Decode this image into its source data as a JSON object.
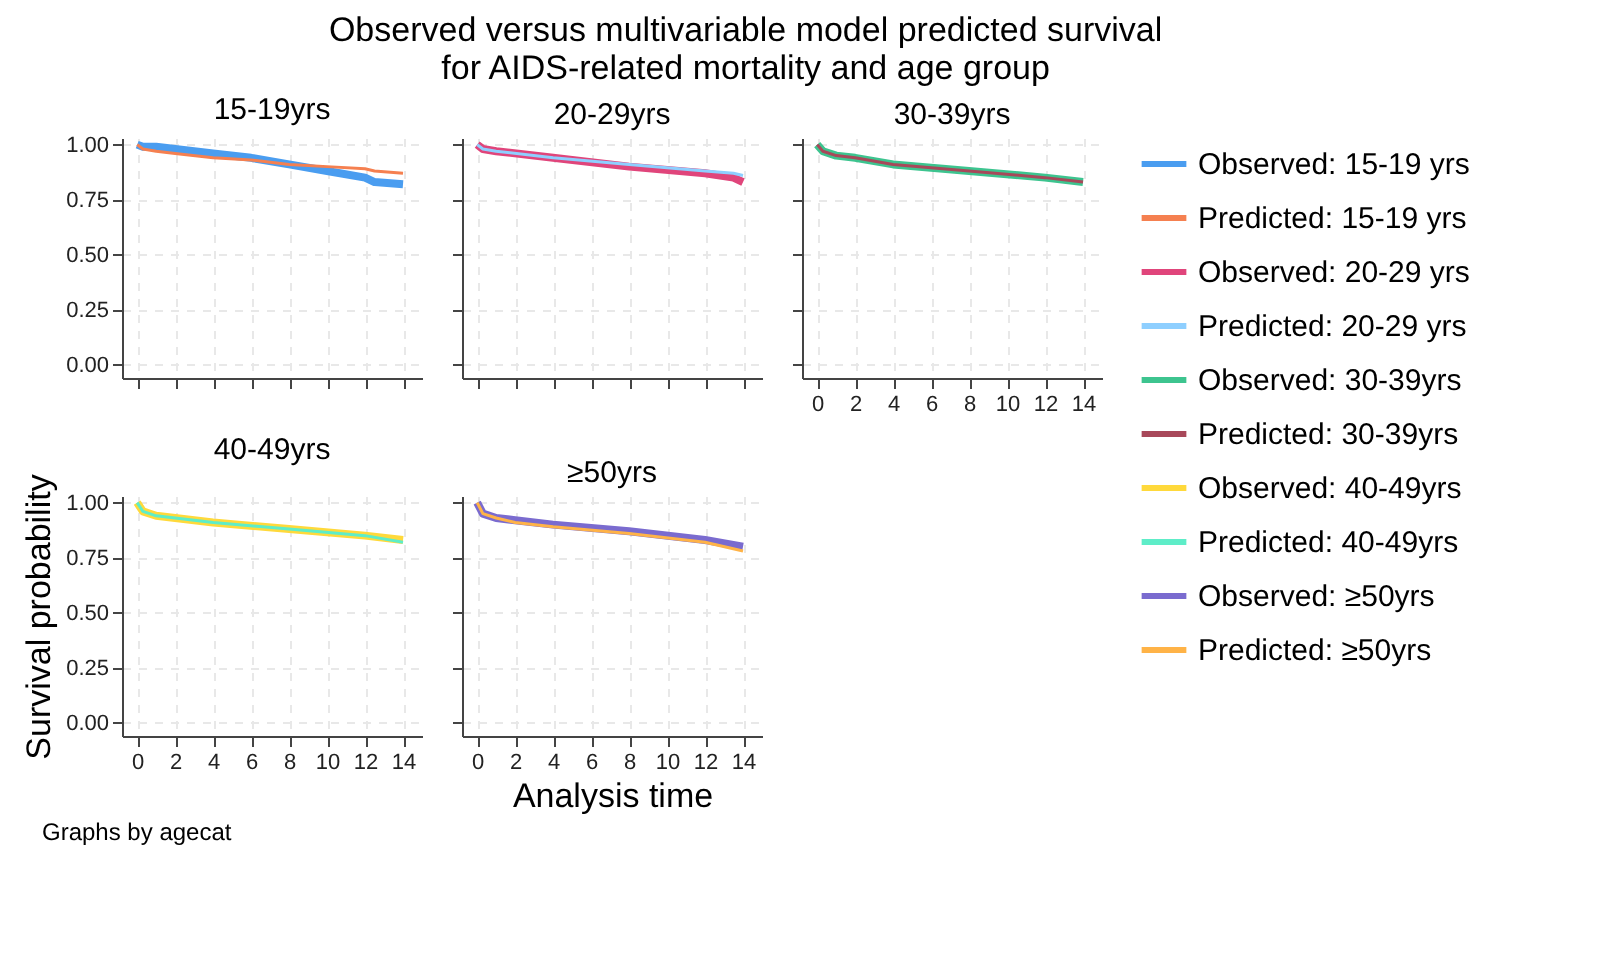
{
  "chart_data": [
    {
      "type": "line",
      "title": "15-19yrs",
      "tick_labels": "y",
      "xlim": [
        -0.8,
        15
      ],
      "ylim": [
        -0.06,
        1.03
      ],
      "xticks": [
        0,
        2,
        4,
        6,
        8,
        10,
        12,
        14
      ],
      "yticks": [
        {
          "value": 0,
          "label": "0.00"
        },
        {
          "value": 0.25,
          "label": "0.25"
        },
        {
          "value": 0.5,
          "label": "0.50"
        },
        {
          "value": 0.75,
          "label": "0.75"
        },
        {
          "value": 1,
          "label": "1.00"
        }
      ],
      "grid": true,
      "legend": "right",
      "x": [
        0,
        0.3,
        1,
        2,
        4,
        6,
        8,
        10,
        12,
        12.5,
        14
      ],
      "series": [
        {
          "name": "Observed: 15-19 yrs",
          "color": "#4a9df0",
          "values": [
            1.0,
            0.99,
            0.99,
            0.98,
            0.96,
            0.94,
            0.91,
            0.88,
            0.85,
            0.83,
            0.82
          ]
        },
        {
          "name": "Predicted: 15-19 yrs",
          "color": "#f58050",
          "values": [
            1.0,
            0.98,
            0.97,
            0.96,
            0.94,
            0.93,
            0.91,
            0.9,
            0.89,
            0.88,
            0.87
          ]
        }
      ]
    },
    {
      "type": "line",
      "title": "20-29yrs",
      "tick_labels": false,
      "xlim": [
        -0.8,
        15
      ],
      "ylim": [
        -0.06,
        1.03
      ],
      "xticks": [
        0,
        2,
        4,
        6,
        8,
        10,
        12,
        14
      ],
      "yticks": [
        {
          "value": 0,
          "label": null
        },
        {
          "value": 0.25,
          "label": null
        },
        {
          "value": 0.5,
          "label": null
        },
        {
          "value": 0.75,
          "label": null
        },
        {
          "value": 1,
          "label": null
        }
      ],
      "grid": true,
      "legend": "right",
      "x": [
        0,
        0.3,
        1,
        4,
        8,
        12,
        13.5,
        14
      ],
      "series": [
        {
          "name": "Observed: 20-29 yrs",
          "color": "#e0457b",
          "values": [
            1.0,
            0.98,
            0.97,
            0.94,
            0.9,
            0.87,
            0.85,
            0.83
          ]
        },
        {
          "name": "Predicted: 20-29 yrs",
          "color": "#8ecfff",
          "values": [
            1.0,
            0.98,
            0.97,
            0.94,
            0.91,
            0.88,
            0.87,
            0.86
          ]
        }
      ]
    },
    {
      "type": "line",
      "title": "30-39yrs",
      "tick_labels": "x",
      "xlim": [
        -0.8,
        15
      ],
      "ylim": [
        -0.06,
        1.03
      ],
      "xticks": [
        0,
        2,
        4,
        6,
        8,
        10,
        12,
        14
      ],
      "yticks": [
        {
          "value": 0,
          "label": null
        },
        {
          "value": 0.25,
          "label": null
        },
        {
          "value": 0.5,
          "label": null
        },
        {
          "value": 0.75,
          "label": null
        },
        {
          "value": 1,
          "label": null
        }
      ],
      "grid": true,
      "legend": "right",
      "x": [
        0,
        0.3,
        1,
        2,
        4,
        8,
        12,
        14
      ],
      "series": [
        {
          "name": "Observed: 30-39yrs",
          "color": "#3dc48f",
          "values": [
            1.0,
            0.97,
            0.95,
            0.94,
            0.91,
            0.88,
            0.85,
            0.83
          ]
        },
        {
          "name": "Predicted: 30-39yrs",
          "color": "#a8485a",
          "values": [
            1.0,
            0.97,
            0.95,
            0.94,
            0.91,
            0.88,
            0.85,
            0.83
          ]
        }
      ]
    },
    {
      "type": "line",
      "title": "40-49yrs",
      "ylabel": "Survival probability",
      "xlim": [
        -0.8,
        15
      ],
      "ylim": [
        -0.06,
        1.03
      ],
      "xticks": [
        0,
        2,
        4,
        6,
        8,
        10,
        12,
        14
      ],
      "yticks": [
        {
          "value": 0,
          "label": "0.00"
        },
        {
          "value": 0.25,
          "label": "0.25"
        },
        {
          "value": 0.5,
          "label": "0.50"
        },
        {
          "value": 0.75,
          "label": "0.75"
        },
        {
          "value": 1,
          "label": "1.00"
        }
      ],
      "grid": true,
      "legend": "right",
      "x": [
        0,
        0.3,
        1,
        2,
        4,
        8,
        12,
        14
      ],
      "series": [
        {
          "name": "Observed: 40-49yrs",
          "color": "#ffd93b",
          "values": [
            1.0,
            0.96,
            0.94,
            0.93,
            0.91,
            0.88,
            0.85,
            0.83
          ]
        },
        {
          "name": "Predicted: 40-49yrs",
          "color": "#5eedc8",
          "values": [
            1.0,
            0.96,
            0.94,
            0.93,
            0.91,
            0.88,
            0.85,
            0.82
          ]
        }
      ]
    },
    {
      "type": "line",
      "title": "≥50yrs",
      "xlabel": "Analysis time",
      "tick_labels": "x",
      "xlim": [
        -0.8,
        15
      ],
      "ylim": [
        -0.06,
        1.03
      ],
      "xticks": [
        0,
        2,
        4,
        6,
        8,
        10,
        12,
        14
      ],
      "yticks": [
        {
          "value": 0,
          "label": null
        },
        {
          "value": 0.25,
          "label": null
        },
        {
          "value": 0.5,
          "label": null
        },
        {
          "value": 0.75,
          "label": null
        },
        {
          "value": 1,
          "label": null
        }
      ],
      "grid": true,
      "legend": "right",
      "x": [
        0,
        0.3,
        1,
        2,
        4,
        8,
        12,
        14
      ],
      "series": [
        {
          "name": "Observed: ≥50yrs",
          "color": "#7a6bcf",
          "values": [
            1.0,
            0.95,
            0.93,
            0.92,
            0.9,
            0.87,
            0.83,
            0.8
          ]
        },
        {
          "name": "Predicted: ≥50yrs",
          "color": "#ffb347",
          "values": [
            1.0,
            0.95,
            0.93,
            0.91,
            0.89,
            0.86,
            0.82,
            0.78
          ]
        }
      ]
    },
    {
      "type": "other",
      "title": "Observed versus multivariable model predicted survival\nfor AIDS-related mortality and age group",
      "annotations": [
        "Graphs by agecat"
      ]
    }
  ]
}
